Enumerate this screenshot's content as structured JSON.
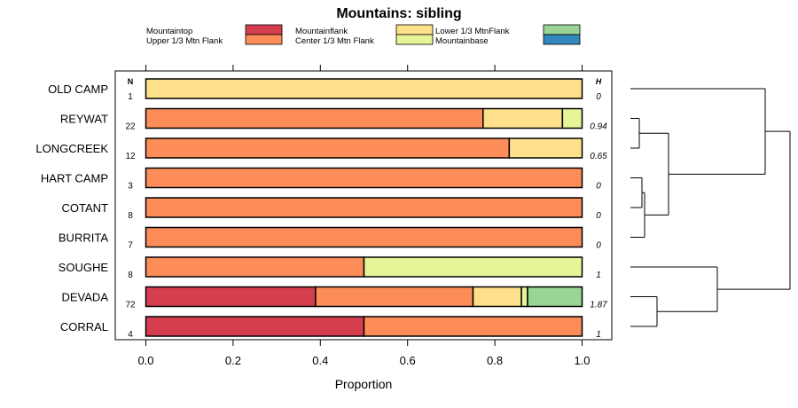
{
  "chart_data": {
    "type": "bar",
    "orientation": "horizontal",
    "stacked": true,
    "title": "Mountains: sibling",
    "xlabel": "Proportion",
    "xlim": [
      0,
      1
    ],
    "xticks": [
      "0.0",
      "0.2",
      "0.4",
      "0.6",
      "0.8",
      "1.0"
    ],
    "n_header": "N",
    "h_header": "H",
    "legend": [
      {
        "key": "mountaintop",
        "label": "Mountaintop",
        "color": "#d53e4f"
      },
      {
        "key": "upper",
        "label": "Upper 1/3 Mtn Flank",
        "color": "#fc8d59"
      },
      {
        "key": "mountainflank",
        "label": "Mountainflank",
        "color": "#fee08b"
      },
      {
        "key": "center",
        "label": "Center 1/3 Mtn Flank",
        "color": "#e6f598"
      },
      {
        "key": "lower",
        "label": "Lower 1/3 MtnFlank",
        "color": "#99d594"
      },
      {
        "key": "base",
        "label": "Mountainbase",
        "color": "#3288bd"
      }
    ],
    "rows": [
      {
        "label": "OLD CAMP",
        "n": "1",
        "h": "0",
        "values": [
          0,
          0,
          1.0,
          0,
          0,
          0
        ]
      },
      {
        "label": "REYWAT",
        "n": "22",
        "h": "0.94",
        "values": [
          0,
          0.773,
          0.182,
          0.045,
          0,
          0
        ]
      },
      {
        "label": "LONGCREEK",
        "n": "12",
        "h": "0.65",
        "values": [
          0,
          0.833,
          0.167,
          0,
          0,
          0
        ]
      },
      {
        "label": "HART CAMP",
        "n": "3",
        "h": "0",
        "values": [
          0,
          1.0,
          0,
          0,
          0,
          0
        ]
      },
      {
        "label": "COTANT",
        "n": "8",
        "h": "0",
        "values": [
          0,
          1.0,
          0,
          0,
          0,
          0
        ]
      },
      {
        "label": "BURRITA",
        "n": "7",
        "h": "0",
        "values": [
          0,
          1.0,
          0,
          0,
          0,
          0
        ]
      },
      {
        "label": "SOUGHE",
        "n": "8",
        "h": "1",
        "values": [
          0,
          0.5,
          0,
          0.5,
          0,
          0
        ]
      },
      {
        "label": "DEVADA",
        "n": "72",
        "h": "1.87",
        "values": [
          0.389,
          0.361,
          0.111,
          0.014,
          0.125,
          0
        ]
      },
      {
        "label": "CORRAL",
        "n": "4",
        "h": "1",
        "values": [
          0.5,
          0.5,
          0,
          0,
          0,
          0
        ]
      }
    ],
    "dendrogram": {
      "description": "hierarchical clustering of sites",
      "merges": [
        {
          "children": [
            "HART CAMP",
            "COTANT"
          ]
        },
        {
          "children": [
            "REYWAT",
            "LONGCREEK"
          ]
        },
        {
          "children": [
            "BURRITA",
            "HART CAMP+COTANT"
          ]
        },
        {
          "children": [
            "REYWAT+LONGCREEK",
            "BURRITA+HART CAMP+COTANT"
          ]
        },
        {
          "children": [
            "DEVADA",
            "CORRAL"
          ]
        },
        {
          "children": [
            "SOUGHE",
            "DEVADA+CORRAL"
          ]
        },
        {
          "children": [
            "OLD CAMP",
            "REYWAT..BURRITA"
          ]
        }
      ]
    }
  }
}
